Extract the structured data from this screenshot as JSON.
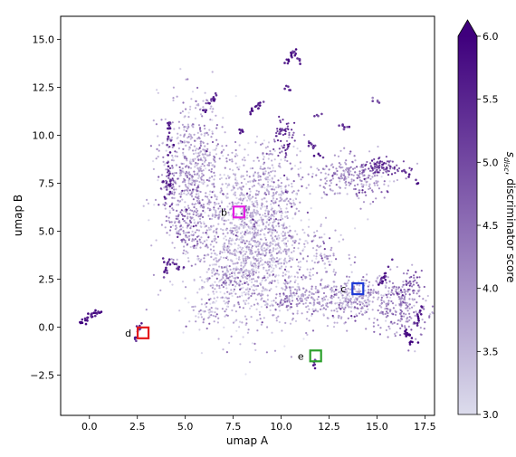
{
  "chart_data": {
    "type": "scatter",
    "xlabel": "umap A",
    "ylabel": "umap B",
    "xlim": [
      -1.5,
      18.0
    ],
    "ylim": [
      -4.6,
      16.2
    ],
    "xticks": [
      0.0,
      2.5,
      5.0,
      7.5,
      10.0,
      12.5,
      15.0,
      17.5
    ],
    "xtick_labels": [
      "0.0",
      "2.5",
      "5.0",
      "7.5",
      "10.0",
      "12.5",
      "15.0",
      "17.5"
    ],
    "yticks": [
      -2.5,
      0.0,
      2.5,
      5.0,
      7.5,
      10.0,
      12.5,
      15.0
    ],
    "ytick_labels": [
      "−2.5",
      "0.0",
      "2.5",
      "5.0",
      "7.5",
      "10.0",
      "12.5",
      "15.0"
    ],
    "colorbar": {
      "label": "s_disc, discriminator score",
      "label_main": "s",
      "label_sub": "disc",
      "label_rest": ", discriminator score",
      "range": [
        3.0,
        6.0
      ],
      "ticks": [
        3.0,
        3.5,
        4.0,
        4.5,
        5.0,
        5.5,
        6.0
      ],
      "tick_labels": [
        "3.0",
        "3.5",
        "4.0",
        "4.5",
        "5.0",
        "5.5",
        "6.0"
      ],
      "extend": "max",
      "color_low": "#dcdcec",
      "color_high": "#3f007d"
    },
    "markers": [
      {
        "label": "b",
        "x": 7.8,
        "y": 6.0,
        "color": "#e41ee4"
      },
      {
        "label": "c",
        "x": 14.0,
        "y": 2.0,
        "color": "#1f3bd6"
      },
      {
        "label": "d",
        "x": 2.8,
        "y": -0.3,
        "color": "#e41a1c"
      },
      {
        "label": "e",
        "x": 11.8,
        "y": -1.5,
        "color": "#2ca02c"
      }
    ],
    "clusters": [
      {
        "x": 8.4,
        "y": 4.0,
        "sx": 1.6,
        "sy": 2.0,
        "n": 1400,
        "score": 3.6
      },
      {
        "x": 5.4,
        "y": 8.0,
        "sx": 0.9,
        "sy": 1.9,
        "n": 650,
        "score": 3.9
      },
      {
        "x": 9.2,
        "y": 7.2,
        "sx": 1.0,
        "sy": 1.3,
        "n": 300,
        "score": 3.8
      },
      {
        "x": 13.2,
        "y": 1.5,
        "sx": 1.8,
        "sy": 0.6,
        "n": 500,
        "score": 3.9
      },
      {
        "x": 16.2,
        "y": 0.9,
        "sx": 0.7,
        "sy": 0.7,
        "n": 160,
        "score": 4.3
      },
      {
        "x": 13.8,
        "y": 7.8,
        "sx": 1.0,
        "sy": 0.6,
        "n": 240,
        "score": 4.2
      },
      {
        "x": 12.2,
        "y": 3.9,
        "sx": 0.6,
        "sy": 0.7,
        "n": 60,
        "score": 4.0
      },
      {
        "x": 6.2,
        "y": 0.8,
        "sx": 0.5,
        "sy": 0.3,
        "n": 40,
        "score": 3.8
      },
      {
        "x": 5.1,
        "y": 5.2,
        "sx": 0.5,
        "sy": 0.8,
        "n": 70,
        "score": 4.6
      },
      {
        "x": 4.1,
        "y": 7.3,
        "sx": 0.2,
        "sy": 0.5,
        "n": 40,
        "score": 5.3
      },
      {
        "x": 10.2,
        "y": 10.0,
        "sx": 0.3,
        "sy": 0.5,
        "n": 60,
        "score": 5.5
      },
      {
        "x": 15.3,
        "y": 8.4,
        "sx": 0.5,
        "sy": 0.2,
        "n": 80,
        "score": 5.5
      },
      {
        "x": 16.8,
        "y": 2.2,
        "sx": 0.3,
        "sy": 0.4,
        "n": 40,
        "score": 5.0
      },
      {
        "x": 7.2,
        "y": 2.2,
        "sx": 0.4,
        "sy": 0.4,
        "n": 40,
        "score": 4.4
      },
      {
        "x": 10.5,
        "y": 1.6,
        "sx": 0.3,
        "sy": 0.3,
        "n": 30,
        "score": 4.5
      }
    ],
    "strands": [
      {
        "x1": 0.6,
        "y1": 0.9,
        "x2": -0.5,
        "y2": 0.2,
        "n": 30,
        "score": 5.8
      },
      {
        "x1": 2.7,
        "y1": 0.2,
        "x2": 2.2,
        "y2": -0.9,
        "n": 14,
        "score": 5.6
      },
      {
        "x1": 4.0,
        "y1": 3.6,
        "x2": 4.0,
        "y2": 2.6,
        "n": 10,
        "score": 5.4
      },
      {
        "x1": 4.0,
        "y1": 3.5,
        "x2": 4.9,
        "y2": 3.0,
        "n": 12,
        "score": 5.5
      },
      {
        "x1": 16.5,
        "y1": -0.2,
        "x2": 17.0,
        "y2": -1.0,
        "n": 20,
        "score": 5.8
      },
      {
        "x1": 17.0,
        "y1": -0.3,
        "x2": 17.3,
        "y2": 1.2,
        "n": 14,
        "score": 5.6
      },
      {
        "x1": 15.0,
        "y1": 2.0,
        "x2": 15.8,
        "y2": 3.4,
        "n": 16,
        "score": 5.6
      },
      {
        "x1": 4.2,
        "y1": 10.8,
        "x2": 4.1,
        "y2": 7.0,
        "n": 30,
        "score": 5.4
      },
      {
        "x1": 6.0,
        "y1": 11.2,
        "x2": 6.6,
        "y2": 12.2,
        "n": 16,
        "score": 5.5
      },
      {
        "x1": 8.4,
        "y1": 11.2,
        "x2": 9.2,
        "y2": 11.9,
        "n": 14,
        "score": 5.6
      },
      {
        "x1": 10.7,
        "y1": 14.4,
        "x2": 10.2,
        "y2": 13.7,
        "n": 14,
        "score": 5.7
      },
      {
        "x1": 10.7,
        "y1": 14.4,
        "x2": 11.0,
        "y2": 13.8,
        "n": 8,
        "score": 5.7
      },
      {
        "x1": 10.3,
        "y1": 12.6,
        "x2": 10.4,
        "y2": 12.3,
        "n": 5,
        "score": 5.5
      },
      {
        "x1": 7.9,
        "y1": 10.4,
        "x2": 8.1,
        "y2": 10.0,
        "n": 6,
        "score": 5.6
      },
      {
        "x1": 11.8,
        "y1": -1.6,
        "x2": 11.8,
        "y2": -2.1,
        "n": 6,
        "score": 5.6
      },
      {
        "x1": 11.5,
        "y1": 9.6,
        "x2": 12.2,
        "y2": 8.8,
        "n": 14,
        "score": 5.4
      },
      {
        "x1": 12.9,
        "y1": 10.5,
        "x2": 13.5,
        "y2": 10.3,
        "n": 8,
        "score": 5.3
      },
      {
        "x1": 14.7,
        "y1": 12.0,
        "x2": 15.0,
        "y2": 11.7,
        "n": 5,
        "score": 5.0
      },
      {
        "x1": 11.9,
        "y1": 11.2,
        "x2": 12.0,
        "y2": 11.0,
        "n": 4,
        "score": 5.2
      },
      {
        "x1": 16.4,
        "y1": 8.2,
        "x2": 17.4,
        "y2": 7.2,
        "n": 8,
        "score": 5.6
      }
    ]
  }
}
